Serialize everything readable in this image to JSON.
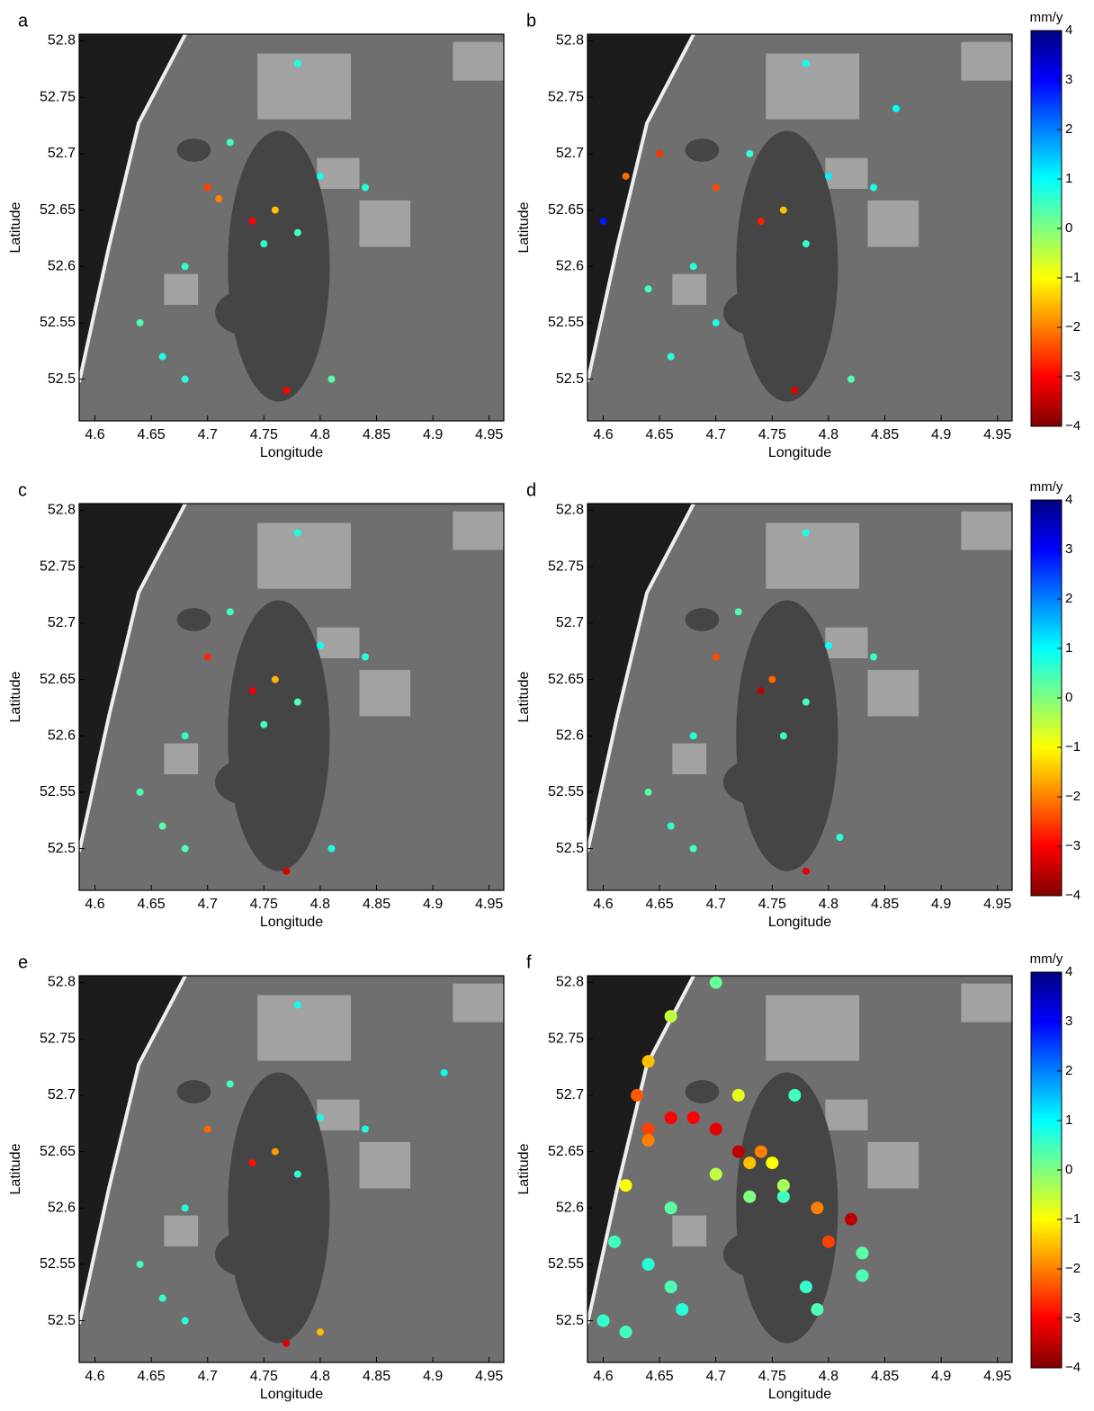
{
  "chart_data": [
    {
      "type": "scatter",
      "label": "a",
      "xlabel": "Longitude",
      "ylabel": "Latitude",
      "xlim": [
        4.586,
        4.963
      ],
      "ylim": [
        52.463,
        52.806
      ],
      "xticks": [
        4.6,
        4.65,
        4.7,
        4.75,
        4.8,
        4.85,
        4.9,
        4.95
      ],
      "yticks": [
        52.5,
        52.55,
        52.6,
        52.65,
        52.7,
        52.75,
        52.8
      ],
      "x": [
        4.7,
        4.74,
        4.76,
        4.78,
        4.68,
        4.66,
        4.68,
        4.78,
        4.8,
        4.84,
        4.72,
        4.64,
        4.81,
        4.77,
        4.75,
        4.71
      ],
      "y": [
        52.67,
        52.64,
        52.65,
        52.63,
        52.6,
        52.52,
        52.5,
        52.78,
        52.68,
        52.67,
        52.71,
        52.55,
        52.5,
        52.49,
        52.62,
        52.66
      ],
      "c": [
        -2.5,
        -3,
        -1.5,
        0.5,
        0.6,
        0.8,
        0.7,
        0.8,
        0.9,
        0.7,
        0.5,
        0.4,
        0.3,
        -3,
        0.6,
        -2
      ]
    },
    {
      "type": "scatter",
      "label": "b",
      "xlabel": "Longitude",
      "ylabel": "Latitude",
      "xlim": [
        4.586,
        4.963
      ],
      "ylim": [
        52.463,
        52.806
      ],
      "xticks": [
        4.6,
        4.65,
        4.7,
        4.75,
        4.8,
        4.85,
        4.9,
        4.95
      ],
      "yticks": [
        52.5,
        52.55,
        52.6,
        52.65,
        52.7,
        52.75,
        52.8
      ],
      "x": [
        4.6,
        4.62,
        4.65,
        4.7,
        4.74,
        4.76,
        4.78,
        4.68,
        4.66,
        4.7,
        4.86,
        4.8,
        4.84,
        4.78,
        4.77,
        4.82,
        4.64,
        4.73
      ],
      "y": [
        52.64,
        52.68,
        52.7,
        52.67,
        52.64,
        52.65,
        52.62,
        52.6,
        52.52,
        52.55,
        52.74,
        52.68,
        52.67,
        52.78,
        52.49,
        52.5,
        52.58,
        52.7
      ],
      "c": [
        2.8,
        -2.2,
        -2.6,
        -2.4,
        -2.8,
        -1.5,
        0.6,
        0.7,
        0.7,
        0.8,
        1,
        1.1,
        0.8,
        0.9,
        -3.2,
        0.4,
        0.5,
        0.6
      ]
    },
    {
      "type": "scatter",
      "label": "c",
      "xlabel": "Longitude",
      "ylabel": "Latitude",
      "xlim": [
        4.586,
        4.963
      ],
      "ylim": [
        52.463,
        52.806
      ],
      "xticks": [
        4.6,
        4.65,
        4.7,
        4.75,
        4.8,
        4.85,
        4.9,
        4.95
      ],
      "yticks": [
        52.5,
        52.55,
        52.6,
        52.65,
        52.7,
        52.75,
        52.8
      ],
      "x": [
        4.7,
        4.74,
        4.76,
        4.78,
        4.68,
        4.66,
        4.68,
        4.78,
        4.8,
        4.84,
        4.72,
        4.64,
        4.81,
        4.77,
        4.75
      ],
      "y": [
        52.67,
        52.64,
        52.65,
        52.63,
        52.6,
        52.52,
        52.5,
        52.78,
        52.68,
        52.67,
        52.71,
        52.55,
        52.5,
        52.48,
        52.61
      ],
      "c": [
        -2.7,
        -3.1,
        -1.6,
        0.4,
        0.6,
        0.3,
        0.4,
        0.8,
        0.9,
        0.7,
        0.5,
        0.4,
        0.8,
        -3.3,
        0.5
      ]
    },
    {
      "type": "scatter",
      "label": "d",
      "xlabel": "Longitude",
      "ylabel": "Latitude",
      "xlim": [
        4.586,
        4.963
      ],
      "ylim": [
        52.463,
        52.806
      ],
      "xticks": [
        4.6,
        4.65,
        4.7,
        4.75,
        4.8,
        4.85,
        4.9,
        4.95
      ],
      "yticks": [
        52.5,
        52.55,
        52.6,
        52.65,
        52.7,
        52.75,
        52.8
      ],
      "x": [
        4.7,
        4.74,
        4.75,
        4.78,
        4.68,
        4.66,
        4.68,
        4.78,
        4.8,
        4.84,
        4.72,
        4.64,
        4.81,
        4.78,
        4.76
      ],
      "y": [
        52.67,
        52.64,
        52.65,
        52.63,
        52.6,
        52.52,
        52.5,
        52.78,
        52.68,
        52.67,
        52.71,
        52.55,
        52.51,
        52.48,
        52.6
      ],
      "c": [
        -2.4,
        -3.5,
        -2.2,
        0.5,
        0.7,
        0.6,
        0.5,
        0.8,
        0.9,
        0.6,
        0.4,
        0.3,
        0.7,
        -3.2,
        0.6
      ]
    },
    {
      "type": "scatter",
      "label": "e",
      "xlabel": "Longitude",
      "ylabel": "Latitude",
      "xlim": [
        4.586,
        4.963
      ],
      "ylim": [
        52.463,
        52.806
      ],
      "xticks": [
        4.6,
        4.65,
        4.7,
        4.75,
        4.8,
        4.85,
        4.9,
        4.95
      ],
      "yticks": [
        52.5,
        52.55,
        52.6,
        52.65,
        52.7,
        52.75,
        52.8
      ],
      "x": [
        4.7,
        4.74,
        4.76,
        4.78,
        4.68,
        4.66,
        4.68,
        4.78,
        4.8,
        4.84,
        4.72,
        4.64,
        4.8,
        4.77,
        4.91
      ],
      "y": [
        52.67,
        52.64,
        52.65,
        52.63,
        52.6,
        52.52,
        52.5,
        52.78,
        52.68,
        52.67,
        52.71,
        52.55,
        52.49,
        52.48,
        52.72
      ],
      "c": [
        -2.2,
        -2.9,
        -1.8,
        0.6,
        0.7,
        0.6,
        0.7,
        0.9,
        0.9,
        0.8,
        0.5,
        0.5,
        -1.5,
        -3.2,
        0.9
      ]
    },
    {
      "type": "scatter",
      "label": "f",
      "xlabel": "Longitude",
      "ylabel": "Latitude",
      "xlim": [
        4.586,
        4.963
      ],
      "ylim": [
        52.463,
        52.806
      ],
      "xticks": [
        4.6,
        4.65,
        4.7,
        4.75,
        4.8,
        4.85,
        4.9,
        4.95
      ],
      "yticks": [
        52.5,
        52.55,
        52.6,
        52.65,
        52.7,
        52.75,
        52.8
      ],
      "x": [
        4.7,
        4.66,
        4.64,
        4.63,
        4.64,
        4.66,
        4.68,
        4.7,
        4.72,
        4.74,
        4.75,
        4.77,
        4.64,
        4.62,
        4.66,
        4.7,
        4.73,
        4.76,
        4.79,
        4.82,
        4.83,
        4.8,
        4.78,
        4.83,
        4.61,
        4.6,
        4.64,
        4.66,
        4.67,
        4.62,
        4.76,
        4.79,
        4.73,
        4.72
      ],
      "y": [
        52.8,
        52.77,
        52.73,
        52.7,
        52.67,
        52.68,
        52.68,
        52.67,
        52.65,
        52.65,
        52.64,
        52.7,
        52.66,
        52.62,
        52.6,
        52.63,
        52.64,
        52.61,
        52.6,
        52.59,
        52.56,
        52.57,
        52.53,
        52.54,
        52.57,
        52.5,
        52.55,
        52.53,
        52.51,
        52.49,
        52.62,
        52.51,
        52.61,
        52.7
      ],
      "c": [
        0.2,
        -0.5,
        -1.5,
        -2.3,
        -2.5,
        -3,
        -3,
        -3.2,
        -3.5,
        -2,
        -1,
        0.5,
        -2,
        -1,
        0.3,
        -0.5,
        -1.5,
        0.5,
        -2,
        -3.5,
        0.3,
        -2.5,
        0.6,
        0.4,
        0.5,
        0.6,
        0.7,
        0.4,
        0.7,
        0.5,
        -0.3,
        0.4,
        0,
        -0.8
      ]
    },
    {
      "type": "colorbar",
      "title": "mm/y",
      "ylim": [
        -4,
        4
      ],
      "yticks": [
        {
          "value": -4,
          "label": "−4"
        },
        {
          "value": -3,
          "label": "−3"
        },
        {
          "value": -2,
          "label": "−2"
        },
        {
          "value": -1,
          "label": "−1"
        },
        0,
        1,
        2,
        3,
        4
      ]
    },
    {
      "type": "colorbar",
      "title": "mm/y",
      "ylim": [
        -4,
        4
      ],
      "yticks": [
        {
          "value": -4,
          "label": "−4"
        },
        {
          "value": -3,
          "label": "−3"
        },
        {
          "value": -2,
          "label": "−2"
        },
        {
          "value": -1,
          "label": "−1"
        },
        0,
        1,
        2,
        3,
        4
      ]
    },
    {
      "type": "colorbar",
      "title": "mm/y",
      "ylim": [
        -4,
        4
      ],
      "yticks": [
        {
          "value": -4,
          "label": "−4"
        },
        {
          "value": -3,
          "label": "−3"
        },
        {
          "value": -2,
          "label": "−2"
        },
        {
          "value": -1,
          "label": "−1"
        },
        0,
        1,
        2,
        3,
        4
      ]
    }
  ]
}
